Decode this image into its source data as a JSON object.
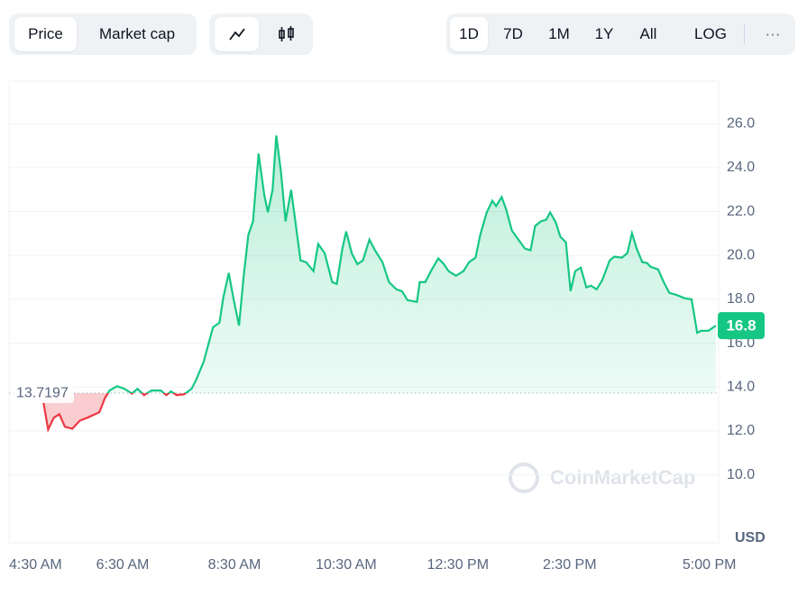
{
  "toolbar": {
    "metric_tabs": [
      "Price",
      "Market cap"
    ],
    "range_tabs": [
      "1D",
      "7D",
      "1M",
      "1Y",
      "All"
    ],
    "log_button": "LOG",
    "more_button": "···"
  },
  "chart_data": {
    "type": "line",
    "x": [
      305,
      310,
      316,
      322,
      328,
      336,
      344,
      352,
      365,
      371,
      376,
      384,
      392,
      400,
      406,
      413,
      421,
      431,
      437,
      442,
      448,
      456,
      464,
      469,
      477,
      487,
      494,
      498,
      504,
      509,
      515,
      520,
      525,
      530,
      536,
      542,
      546,
      551,
      555,
      560,
      565,
      571,
      581,
      587,
      595,
      600,
      607,
      615,
      620,
      626,
      630,
      636,
      642,
      648,
      655,
      661,
      669,
      676,
      684,
      690,
      696,
      706,
      709,
      715,
      721,
      729,
      735,
      740,
      748,
      756,
      762,
      769,
      774,
      781,
      787,
      791,
      797,
      802,
      808,
      815,
      822,
      828,
      833,
      839,
      845,
      849,
      855,
      860,
      866,
      871,
      876,
      882,
      888,
      893,
      899,
      905,
      913,
      918,
      926,
      932,
      937,
      942,
      948,
      953,
      957,
      965,
      971,
      977,
      984,
      994,
      1001,
      1007,
      1011,
      1019,
      1027
    ],
    "values": [
      13.3,
      12.06,
      12.6,
      12.76,
      12.19,
      12.1,
      12.47,
      12.6,
      12.85,
      13.5,
      13.84,
      14.04,
      13.92,
      13.7,
      13.92,
      13.63,
      13.84,
      13.84,
      13.63,
      13.8,
      13.63,
      13.67,
      13.92,
      14.33,
      15.15,
      16.72,
      16.93,
      18.04,
      19.2,
      18.04,
      16.8,
      19.07,
      20.93,
      21.55,
      24.64,
      22.78,
      21.96,
      22.99,
      25.46,
      23.81,
      21.55,
      22.99,
      19.77,
      19.69,
      19.28,
      20.52,
      20.1,
      18.78,
      18.7,
      20.31,
      21.09,
      20.1,
      19.6,
      19.77,
      20.72,
      20.23,
      19.69,
      18.78,
      18.45,
      18.37,
      17.96,
      17.88,
      18.78,
      18.78,
      19.28,
      19.86,
      19.6,
      19.28,
      19.07,
      19.28,
      19.69,
      19.9,
      20.93,
      21.96,
      22.49,
      22.25,
      22.66,
      22.08,
      21.13,
      20.72,
      20.31,
      20.23,
      21.34,
      21.55,
      21.63,
      21.96,
      21.51,
      20.85,
      20.6,
      18.37,
      19.28,
      19.44,
      18.54,
      18.62,
      18.45,
      18.87,
      19.77,
      19.94,
      19.9,
      20.1,
      21.01,
      20.31,
      19.69,
      19.65,
      19.48,
      19.36,
      18.78,
      18.29,
      18.21,
      18.04,
      18,
      16.47,
      16.56,
      16.56,
      16.8
    ],
    "xlim": [
      268,
      1030
    ],
    "xticks": [
      {
        "value": 270,
        "label": "4:30 AM"
      },
      {
        "value": 390,
        "label": "6:30 AM"
      },
      {
        "value": 510,
        "label": "8:30 AM"
      },
      {
        "value": 630,
        "label": "10:30 AM"
      },
      {
        "value": 750,
        "label": "12:30 PM"
      },
      {
        "value": 870,
        "label": "2:30 PM"
      },
      {
        "value": 1020,
        "label": "5:00 PM"
      }
    ],
    "ylim": [
      6.9,
      27.94
    ],
    "yticks": [
      {
        "value": 10,
        "label": "10.0"
      },
      {
        "value": 12,
        "label": "12.0"
      },
      {
        "value": 14,
        "label": "14.0"
      },
      {
        "value": 16,
        "label": "16.0"
      },
      {
        "value": 18,
        "label": "18.0"
      },
      {
        "value": 20,
        "label": "20.0"
      },
      {
        "value": 22,
        "label": "22.0"
      },
      {
        "value": 24,
        "label": "24.0"
      },
      {
        "value": 26,
        "label": "26.0"
      }
    ],
    "grid": true,
    "baseline": 13.7197,
    "price_label": 16.8,
    "up_color": "#16c784",
    "down_color": "#ea3943",
    "y_unit_label": "USD",
    "watermark": "CoinMarketCap"
  }
}
